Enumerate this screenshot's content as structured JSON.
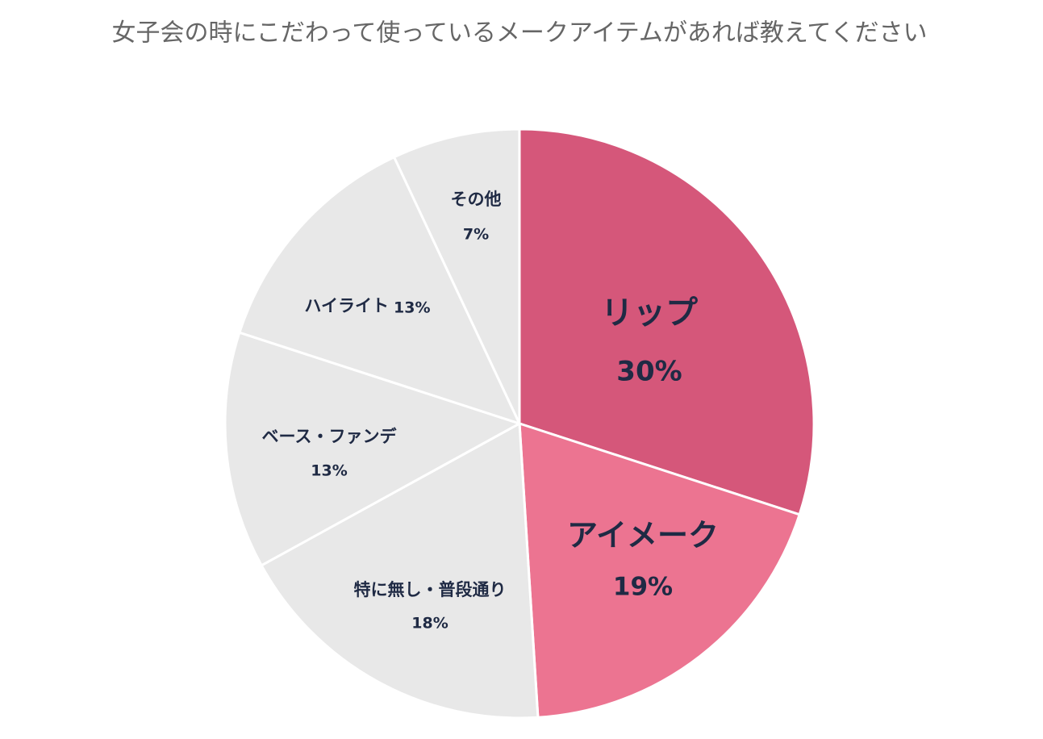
{
  "chart_data": {
    "type": "pie",
    "title": "女子会の時にこだわって使っているメークアイテムがあれば教えてください",
    "categories": [
      "リップ",
      "アイメーク",
      "特に無し・普段通り",
      "ベース・ファンデ",
      "ハイライト",
      "その他"
    ],
    "values": [
      30,
      19,
      18,
      13,
      13,
      7
    ],
    "value_labels": [
      "30%",
      "19%",
      "18%",
      "13%",
      "13%",
      "7%"
    ],
    "colors": [
      "#d5577a",
      "#ec7491",
      "#e8e8e8",
      "#e8e8e8",
      "#e8e8e8",
      "#e8e8e8"
    ]
  }
}
